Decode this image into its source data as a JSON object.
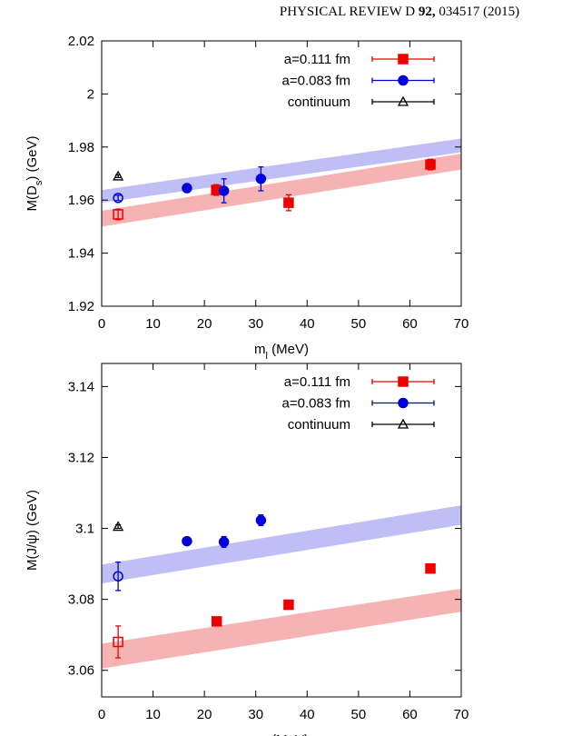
{
  "header": {
    "journal": "PHYSICAL REVIEW D",
    "volume": "92,",
    "article": "034517 (2015)"
  },
  "chart_data": [
    {
      "type": "scatter",
      "xlabel": [
        "m",
        "l",
        " (MeV)"
      ],
      "ylabel": [
        "M(D",
        "s",
        ") (GeV)"
      ],
      "xlim": [
        0,
        70
      ],
      "ylim": [
        1.92,
        2.02
      ],
      "xticks": [
        0,
        10,
        20,
        30,
        40,
        50,
        60,
        70
      ],
      "yticks": [
        1.92,
        1.94,
        1.96,
        1.98,
        2,
        2.02
      ],
      "legend": "upper right",
      "series": [
        {
          "name": "a=0.111 fm",
          "color": "#ee0000",
          "marker": "square",
          "x": [
            22.3,
            36.4,
            64
          ],
          "values": [
            1.9638,
            1.959,
            1.9734
          ],
          "errors": [
            0.002,
            0.003,
            0.002
          ],
          "extrapolated": {
            "x": [
              3.2
            ],
            "values": [
              1.9546
            ],
            "errors": [
              0.002
            ]
          },
          "band": {
            "color": "#f4a6a6",
            "x": [
              0,
              70
            ],
            "lower": [
              1.95,
              1.9715
            ],
            "upper": [
              1.956,
              1.9775
            ]
          }
        },
        {
          "name": "a=0.083 fm",
          "color": "#0000dd",
          "marker": "circle",
          "x": [
            16.6,
            23.8,
            31
          ],
          "values": [
            1.9645,
            1.9635,
            1.968
          ],
          "errors": [
            0.0015,
            0.0045,
            0.0045
          ],
          "extrapolated": {
            "x": [
              3.2
            ],
            "values": [
              1.9608
            ],
            "errors": [
              0.001
            ]
          },
          "band": {
            "color": "#b4b4f4",
            "x": [
              0,
              70
            ],
            "lower": [
              1.959,
              1.978
            ],
            "upper": [
              1.9638,
              1.9832
            ]
          }
        },
        {
          "name": "continuum",
          "color": "#000000",
          "marker": "triangle",
          "x": [
            3.2
          ],
          "values": [
            1.969
          ],
          "errors": [
            0.0005
          ]
        }
      ]
    },
    {
      "type": "scatter",
      "xlabel": [
        "m",
        "l",
        " (MeV)"
      ],
      "ylabel": [
        "M(J/ψ) (GeV)"
      ],
      "xlim": [
        0,
        70
      ],
      "ylim": [
        3.0525,
        3.1465
      ],
      "xticks": [
        0,
        10,
        20,
        30,
        40,
        50,
        60,
        70
      ],
      "yticks": [
        3.06,
        3.08,
        3.1,
        3.12,
        3.14
      ],
      "legend": "upper right",
      "series": [
        {
          "name": "a=0.111 fm",
          "color": "#ee0000",
          "marker": "square",
          "x": [
            22.4,
            36.4,
            64
          ],
          "values": [
            3.0738,
            3.0785,
            3.0887
          ],
          "errors": [
            0.001,
            0.001,
            0.001
          ],
          "extrapolated": {
            "x": [
              3.2
            ],
            "values": [
              3.068
            ],
            "errors": [
              0.0045
            ]
          },
          "band": {
            "color": "#f4a6a6",
            "x": [
              0,
              70
            ],
            "lower": [
              3.0605,
              3.0765
            ],
            "upper": [
              3.0675,
              3.083
            ]
          }
        },
        {
          "name": "a=0.083 fm",
          "color": "#0000dd",
          "marker": "circle",
          "x": [
            16.6,
            23.8,
            31
          ],
          "values": [
            3.0964,
            3.0962,
            3.1023
          ],
          "errors": [
            0.001,
            0.0015,
            0.0015
          ],
          "extrapolated": {
            "x": [
              3.2
            ],
            "values": [
              3.0865
            ],
            "errors": [
              0.004
            ]
          },
          "band": {
            "color": "#b4b4f4",
            "x": [
              0,
              70
            ],
            "lower": [
              3.0845,
              3.101
            ],
            "upper": [
              3.0898,
              3.1065
            ]
          }
        },
        {
          "name": "continuum",
          "color": "#000000",
          "marker": "triangle",
          "x": [
            3.2
          ],
          "values": [
            3.1005
          ],
          "errors": [
            0.0005
          ]
        }
      ]
    }
  ]
}
